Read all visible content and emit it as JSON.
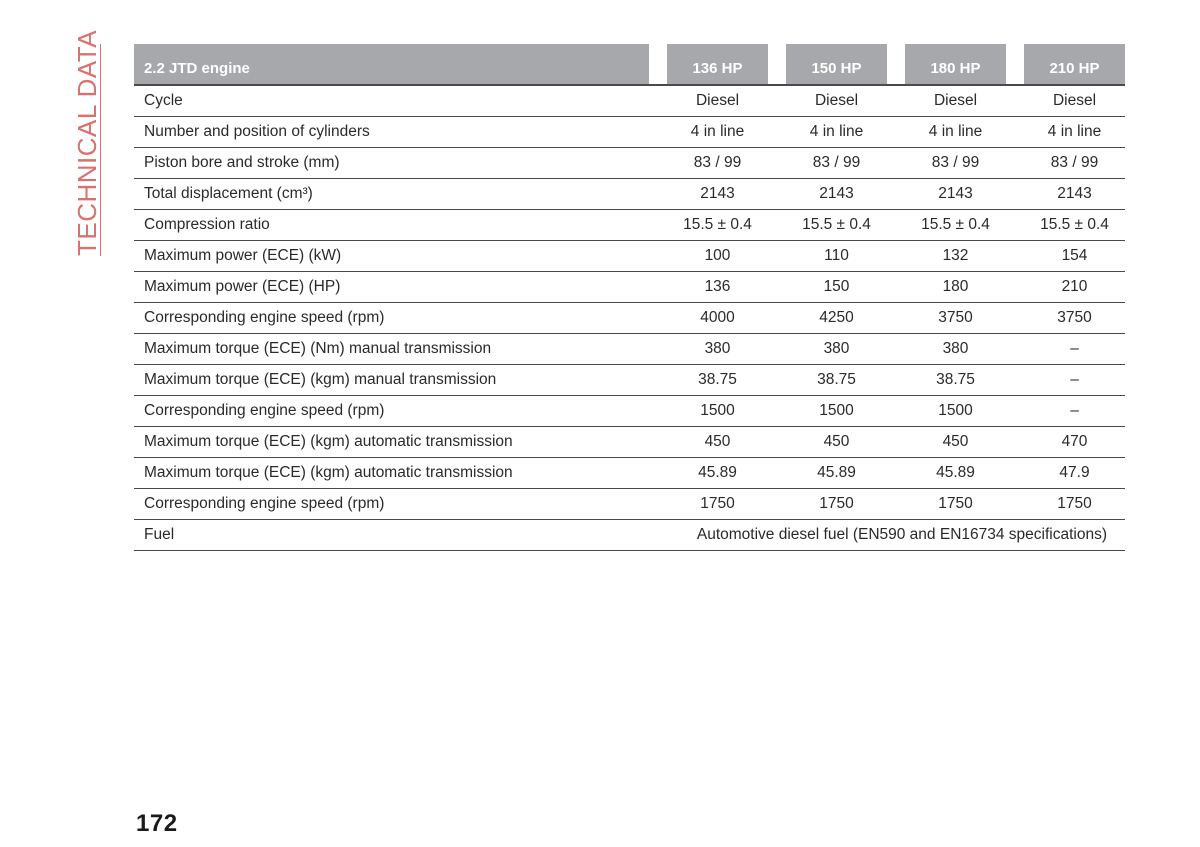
{
  "side_tab": {
    "label": "TECHNICAL DATA"
  },
  "table": {
    "title": "2.2 JTD engine",
    "columns": [
      "136 HP",
      "150 HP",
      "180 HP",
      "210 HP"
    ],
    "rows": [
      {
        "label": "Cycle",
        "values": [
          "Diesel",
          "Diesel",
          "Diesel",
          "Diesel"
        ]
      },
      {
        "label": "Number and position of cylinders",
        "values": [
          "4 in line",
          "4 in line",
          "4 in line",
          "4 in line"
        ]
      },
      {
        "label": "Piston bore and stroke (mm)",
        "values": [
          "83 / 99",
          "83 / 99",
          "83 / 99",
          "83 / 99"
        ]
      },
      {
        "label": "Total displacement (cm³)",
        "values": [
          "2143",
          "2143",
          "2143",
          "2143"
        ]
      },
      {
        "label": "Compression ratio",
        "values": [
          "15.5 ± 0.4",
          "15.5 ± 0.4",
          "15.5 ± 0.4",
          "15.5 ± 0.4"
        ]
      },
      {
        "label": "Maximum power (ECE) (kW)",
        "values": [
          "100",
          "110",
          "132",
          "154"
        ]
      },
      {
        "label": "Maximum power (ECE) (HP)",
        "values": [
          "136",
          "150",
          "180",
          "210"
        ]
      },
      {
        "label": "Corresponding engine speed (rpm)",
        "values": [
          "4000",
          "4250",
          "3750",
          "3750"
        ]
      },
      {
        "label": "Maximum torque (ECE) (Nm) manual transmission",
        "values": [
          "380",
          "380",
          "380",
          "–"
        ]
      },
      {
        "label": "Maximum torque (ECE) (kgm) manual transmission",
        "values": [
          "38.75",
          "38.75",
          "38.75",
          "–"
        ]
      },
      {
        "label": "Corresponding engine speed (rpm)",
        "values": [
          "1500",
          "1500",
          "1500",
          "–"
        ]
      },
      {
        "label": "Maximum torque (ECE) (kgm) automatic transmission",
        "values": [
          "450",
          "450",
          "450",
          "470"
        ]
      },
      {
        "label": "Maximum torque (ECE) (kgm) automatic transmission",
        "values": [
          "45.89",
          "45.89",
          "45.89",
          "47.9"
        ]
      },
      {
        "label": "Corresponding engine speed (rpm)",
        "values": [
          "1750",
          "1750",
          "1750",
          "1750"
        ]
      }
    ],
    "fuel": {
      "label": "Fuel",
      "value": "Automotive diesel fuel (EN590 and EN16734 specifications)"
    }
  },
  "page_number": "172",
  "colors": {
    "accent": "#d9716e",
    "header_bg": "#a7a8ab",
    "rule": "#4a4a4a"
  }
}
